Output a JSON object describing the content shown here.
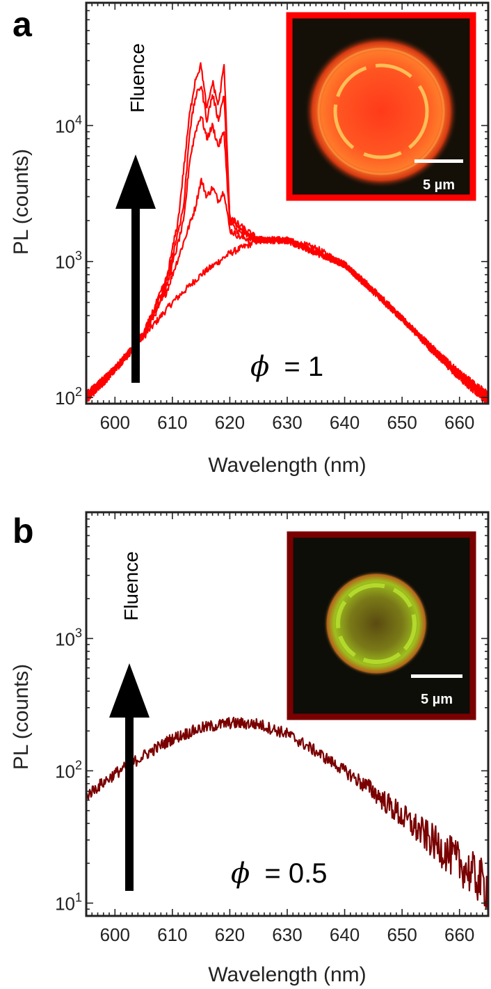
{
  "chart_data": [
    {
      "panel": "a",
      "type": "line",
      "x_scale": "linear",
      "y_scale": "log",
      "xlabel": "Wavelength (nm)",
      "ylabel": "PL (counts)",
      "xlim": [
        595,
        665
      ],
      "ylim": [
        90,
        80000
      ],
      "x_ticks": [
        600,
        610,
        620,
        630,
        640,
        650,
        660
      ],
      "y_ticks": [
        {
          "base": "10",
          "exp": "2",
          "value": 100
        },
        {
          "base": "10",
          "exp": "3",
          "value": 1000
        },
        {
          "base": "10",
          "exp": "4",
          "value": 10000
        }
      ],
      "color": "#ff0000",
      "annotation_arrow": "Fluence",
      "phi_symbol": "ϕ",
      "phi_value": "= 1",
      "inset": {
        "scale_bar": "5 µm",
        "frame_color": "#ff0000",
        "ring_color": "#ff5a1a",
        "type": "micrograph"
      },
      "series": [
        {
          "x": [
            595,
            600,
            605,
            610,
            615,
            620,
            625,
            630,
            635,
            640,
            645,
            650,
            655,
            660,
            665
          ],
          "y": [
            100,
            160,
            280,
            500,
            800,
            1150,
            1430,
            1430,
            1250,
            950,
            620,
            380,
            230,
            145,
            98
          ]
        },
        {
          "x": [
            595,
            600,
            605,
            609,
            612,
            614,
            615,
            616,
            617,
            618,
            619,
            620,
            622,
            625,
            630,
            640,
            650,
            660,
            665
          ],
          "y": [
            100,
            160,
            285,
            600,
            1400,
            2500,
            4000,
            3000,
            3500,
            2800,
            3300,
            1700,
            1500,
            1430,
            1430,
            950,
            380,
            145,
            98
          ]
        },
        {
          "x": [
            595,
            600,
            605,
            609,
            612,
            613,
            614,
            615,
            616,
            617,
            618,
            619,
            620,
            622,
            625,
            630,
            640,
            650,
            660,
            665
          ],
          "y": [
            100,
            160,
            290,
            650,
            2000,
            5500,
            9000,
            12000,
            8000,
            10000,
            7000,
            9000,
            1900,
            1600,
            1450,
            1430,
            950,
            380,
            145,
            98
          ]
        },
        {
          "x": [
            595,
            600,
            605,
            609,
            612,
            613,
            614,
            615,
            616,
            617,
            618,
            619,
            620,
            622,
            625,
            630,
            640,
            650,
            660,
            665
          ],
          "y": [
            100,
            160,
            290,
            700,
            2600,
            9000,
            16000,
            20000,
            11000,
            17000,
            11000,
            17000,
            2000,
            1700,
            1450,
            1430,
            950,
            380,
            145,
            98
          ]
        },
        {
          "x": [
            595,
            600,
            605,
            609,
            611,
            613,
            614,
            615,
            616,
            617,
            618,
            619,
            620,
            622,
            625,
            630,
            640,
            650,
            660,
            665
          ],
          "y": [
            100,
            160,
            295,
            750,
            2000,
            12000,
            22000,
            28000,
            13000,
            21000,
            14000,
            28000,
            2100,
            1800,
            1450,
            1430,
            950,
            380,
            145,
            98
          ]
        }
      ]
    },
    {
      "panel": "b",
      "type": "line",
      "x_scale": "linear",
      "y_scale": "log",
      "xlabel": "Wavelength (nm)",
      "ylabel": "PL (counts)",
      "xlim": [
        595,
        665
      ],
      "ylim": [
        8,
        9000
      ],
      "x_ticks": [
        600,
        610,
        620,
        630,
        640,
        650,
        660
      ],
      "y_ticks": [
        {
          "base": "10",
          "exp": "1",
          "value": 10
        },
        {
          "base": "10",
          "exp": "2",
          "value": 100
        },
        {
          "base": "10",
          "exp": "3",
          "value": 1000
        }
      ],
      "color": "#7a0000",
      "annotation_arrow": "Fluence",
      "phi_symbol": "ϕ",
      "phi_value": "= 0.5",
      "inset": {
        "scale_bar": "5 µm",
        "frame_color": "#7a0000",
        "ring_color": "#a8d020",
        "type": "micrograph"
      },
      "series": [
        {
          "x": [
            595,
            600,
            605,
            610,
            615,
            620,
            625,
            630,
            635,
            640,
            645,
            650,
            655,
            660,
            665
          ],
          "y": [
            65,
            95,
            130,
            175,
            210,
            230,
            225,
            190,
            140,
            100,
            70,
            45,
            30,
            20,
            13
          ]
        }
      ]
    }
  ],
  "panel_a": {
    "letter": "a",
    "xlabel": "Wavelength (nm)",
    "ylabel": "PL (counts)",
    "arrow_label": "Fluence",
    "phi_symbol": "ϕ",
    "phi_value": "= 1",
    "scale_bar": "5 µm"
  },
  "panel_b": {
    "letter": "b",
    "xlabel": "Wavelength (nm)",
    "ylabel": "PL (counts)",
    "arrow_label": "Fluence",
    "phi_symbol": "ϕ",
    "phi_value": "= 0.5",
    "scale_bar": "5 µm"
  }
}
